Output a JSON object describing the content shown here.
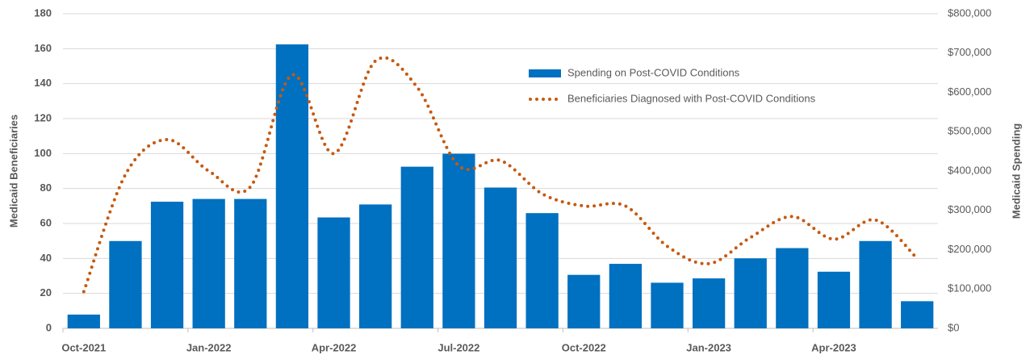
{
  "chart_data": {
    "type": "bar_line",
    "categories": [
      "Oct-2021",
      null,
      null,
      "Jan-2022",
      null,
      null,
      "Apr-2022",
      null,
      null,
      "Jul-2022",
      null,
      null,
      "Oct-2022",
      null,
      null,
      "Jan-2023",
      null,
      null,
      "Apr-2023",
      null,
      null
    ],
    "series": [
      {
        "name": "Spending on Post-COVID Conditions",
        "type": "bar",
        "axis": "y2",
        "color": "#0070c0",
        "values": [
          35000,
          222000,
          322000,
          329000,
          329000,
          722000,
          282000,
          315000,
          411000,
          444000,
          358000,
          293000,
          136000,
          164000,
          116000,
          127000,
          178000,
          204000,
          144000,
          222000,
          69000
        ]
      },
      {
        "name": "Beneficiaries Diagnosed with Post-COVID Conditions",
        "type": "line",
        "axis": "y",
        "color": "#c55a11",
        "values": [
          21,
          88,
          108,
          90,
          81,
          145,
          100,
          153,
          138,
          93,
          96,
          77,
          70,
          70,
          47,
          37,
          52,
          64,
          51,
          62,
          40
        ]
      }
    ],
    "ylabel": "Medicaid Beneficiaries",
    "y2label": "Medicaid Spending",
    "ylim": [
      0,
      180
    ],
    "yticks": [
      0,
      20,
      40,
      60,
      80,
      100,
      120,
      140,
      160,
      180
    ],
    "y2lim": [
      0,
      800000
    ],
    "y2ticks": [
      {
        "value": 0,
        "label": "$0"
      },
      {
        "value": 100000,
        "label": "$100,000"
      },
      {
        "value": 200000,
        "label": "$200,000"
      },
      {
        "value": 300000,
        "label": "$300,000"
      },
      {
        "value": 400000,
        "label": "$400,000"
      },
      {
        "value": 500000,
        "label": "$500,000"
      },
      {
        "value": 600000,
        "label": "$600,000"
      },
      {
        "value": 700000,
        "label": "$700,000"
      },
      {
        "value": 800000,
        "label": "$800,000"
      }
    ],
    "grid": true
  }
}
